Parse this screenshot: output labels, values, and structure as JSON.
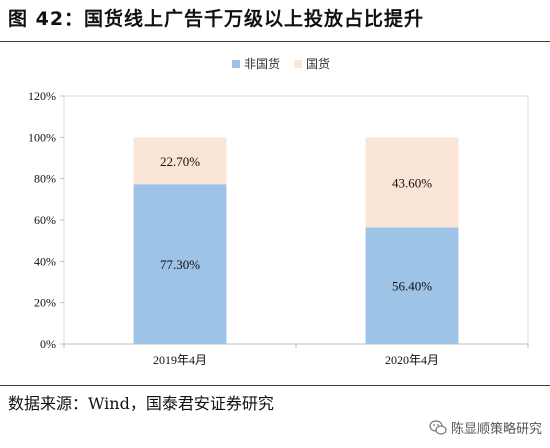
{
  "title": "图 42：国货线上广告千万级以上投放占比提升",
  "source": "数据来源：Wind，国泰君安证券研究",
  "watermark": {
    "text": "陈显顺策略研究",
    "icon": "wechat-icon"
  },
  "colors": {
    "non_domestic": "#9DC3E6",
    "domestic": "#FBE5D6",
    "axis": "#d9d9d9",
    "text": "#111111"
  },
  "chart_data": {
    "type": "bar",
    "stacked": true,
    "categories": [
      "2019年4月",
      "2020年4月"
    ],
    "series": [
      {
        "name": "非国货",
        "values": [
          77.3,
          56.4
        ],
        "labels": [
          "77.30%",
          "56.40%"
        ],
        "color": "#9DC3E6"
      },
      {
        "name": "国货",
        "values": [
          22.7,
          43.6
        ],
        "labels": [
          "22.70%",
          "43.60%"
        ],
        "color": "#FBE5D6"
      }
    ],
    "yticks": [
      "0%",
      "20%",
      "40%",
      "60%",
      "80%",
      "100%",
      "120%"
    ],
    "ylim": [
      0,
      120
    ],
    "grid": false,
    "legend_position": "top"
  }
}
